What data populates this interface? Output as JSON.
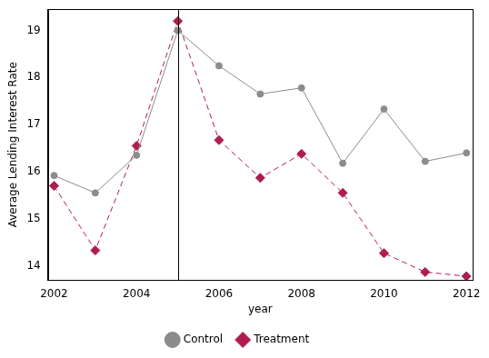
{
  "chart_data": {
    "type": "line",
    "x_label": "year",
    "y_label": "Average Lending Interest Rate",
    "x": [
      2002,
      2003,
      2004,
      2005,
      2006,
      2007,
      2008,
      2009,
      2010,
      2011,
      2012
    ],
    "series": [
      {
        "name": "Control",
        "color": "#8c8c8c",
        "marker": "circle",
        "line_style": "solid",
        "values": [
          15.92,
          15.55,
          16.35,
          19.0,
          18.25,
          17.65,
          17.78,
          16.18,
          17.33,
          16.22,
          16.4
        ]
      },
      {
        "name": "Treatment",
        "color": "#b01c4e",
        "marker": "diamond",
        "line_style": "dashed",
        "values": [
          15.7,
          14.33,
          16.55,
          19.2,
          16.67,
          15.87,
          16.38,
          15.55,
          14.27,
          13.87,
          13.78
        ]
      }
    ],
    "vlines": [
      2005
    ],
    "xlim": [
      2001.85,
      2012.15
    ],
    "xticks": [
      2002,
      2004,
      2006,
      2008,
      2010,
      2012
    ],
    "ylim": [
      13.7,
      19.45
    ],
    "yticks": [
      14,
      15,
      16,
      17,
      18,
      19
    ],
    "grid": false,
    "legend": "bottom"
  }
}
